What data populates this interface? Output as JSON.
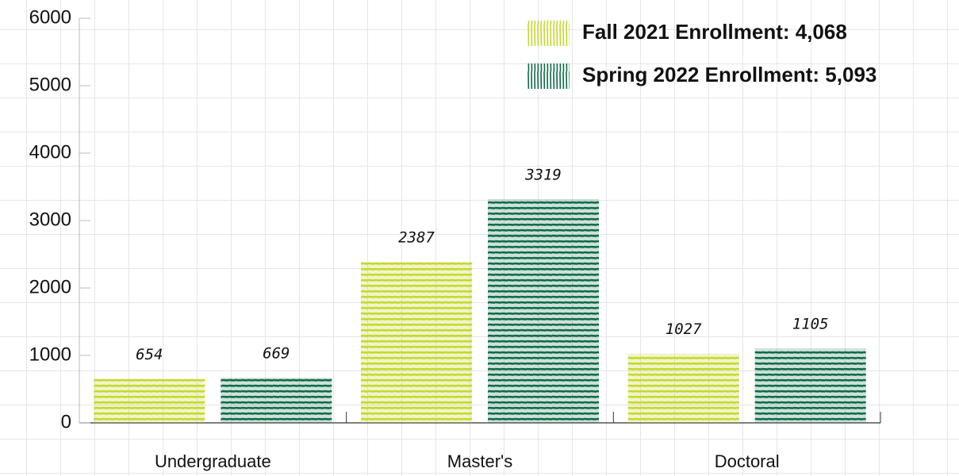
{
  "chart_data": {
    "type": "bar",
    "categories": [
      "Undergraduate",
      "Master's",
      "Doctoral"
    ],
    "series": [
      {
        "name": "Fall 2021 Enrollment: 4,068",
        "color": "#c5d82a",
        "values": [
          654,
          2387,
          1027
        ]
      },
      {
        "name": "Spring 2022 Enrollment: 5,093",
        "color": "#0b6b45",
        "values": [
          669,
          3319,
          1105
        ]
      }
    ],
    "ylim": [
      0,
      6000
    ],
    "yticks": [
      0,
      1000,
      2000,
      3000,
      4000,
      5000,
      6000
    ],
    "legend": "upper right"
  }
}
